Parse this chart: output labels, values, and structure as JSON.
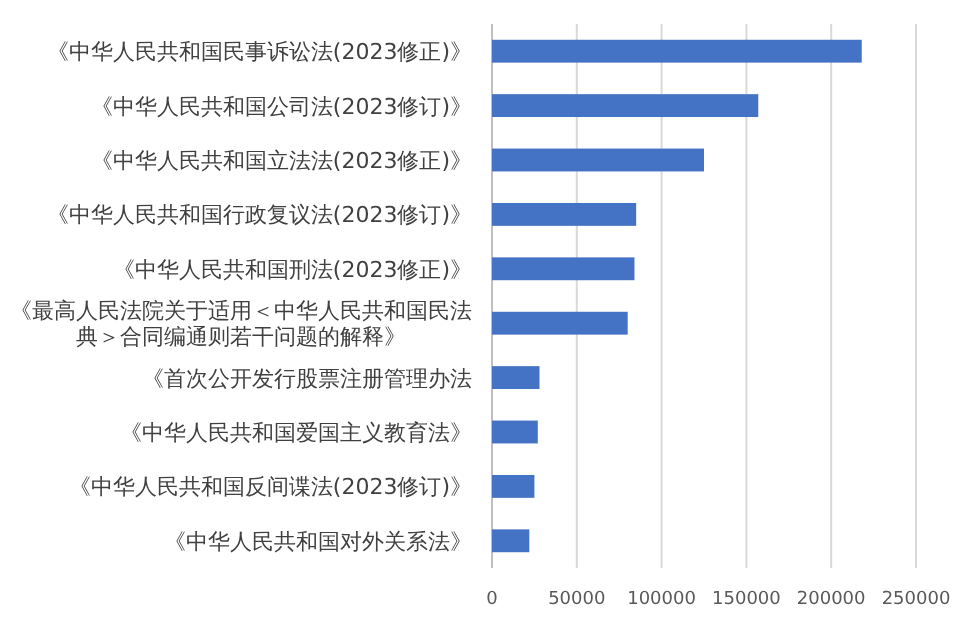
{
  "chart_data": {
    "type": "bar",
    "orientation": "horizontal",
    "categories": [
      "《中华人民共和国民事诉讼法(2023修正)》",
      "《中华人民共和国公司法(2023修订)》",
      "《中华人民共和国立法法(2023修正)》",
      "《中华人民共和国行政复议法(2023修订)》",
      "《中华人民共和国刑法(2023修正)》",
      "《最高人民法院关于适用＜中华人民共和国民法典＞合同编通则若干问题的解释》",
      "《首次公开发行股票注册管理办法",
      "《中华人民共和国爱国主义教育法》",
      "《中华人民共和国反间谍法(2023修订)》",
      "《中华人民共和国对外关系法》"
    ],
    "values": [
      218000,
      157000,
      125000,
      85000,
      84000,
      80000,
      28000,
      27000,
      25000,
      22000
    ],
    "color": "#4472c4",
    "xlim": [
      0,
      250000
    ],
    "xticks": [
      0,
      50000,
      100000,
      150000,
      200000,
      250000
    ],
    "grid": "x"
  }
}
